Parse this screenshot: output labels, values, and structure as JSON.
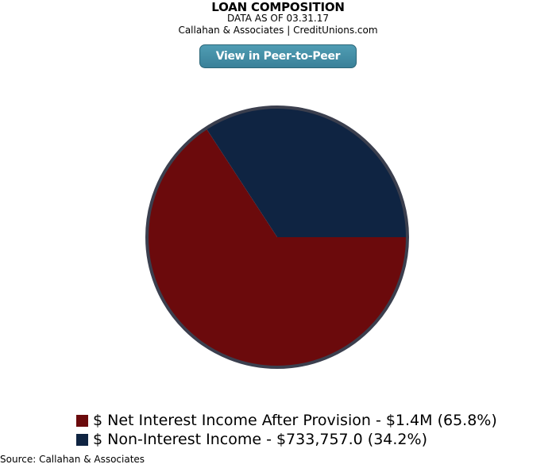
{
  "header": {
    "title": "LOAN COMPOSITION",
    "date_line": "DATA AS OF 03.31.17",
    "credit_line": "Callahan & Associates | CreditUnions.com"
  },
  "button": {
    "label": "View in Peer-to-Peer"
  },
  "footer": {
    "source": "Source: Callahan & Associates"
  },
  "chart_data": {
    "type": "pie",
    "legend_position": "bottom-left",
    "slices": [
      {
        "label": "$ Net Interest Income After Provision - $1.4M (65.8%)",
        "value": 65.8,
        "color": "#6b0a0c"
      },
      {
        "label": "$ Non-Interest Income - $733,757.0 (34.2%)",
        "value": 34.2,
        "color": "#0f2442"
      }
    ],
    "border_color": "#3b3f4e"
  }
}
